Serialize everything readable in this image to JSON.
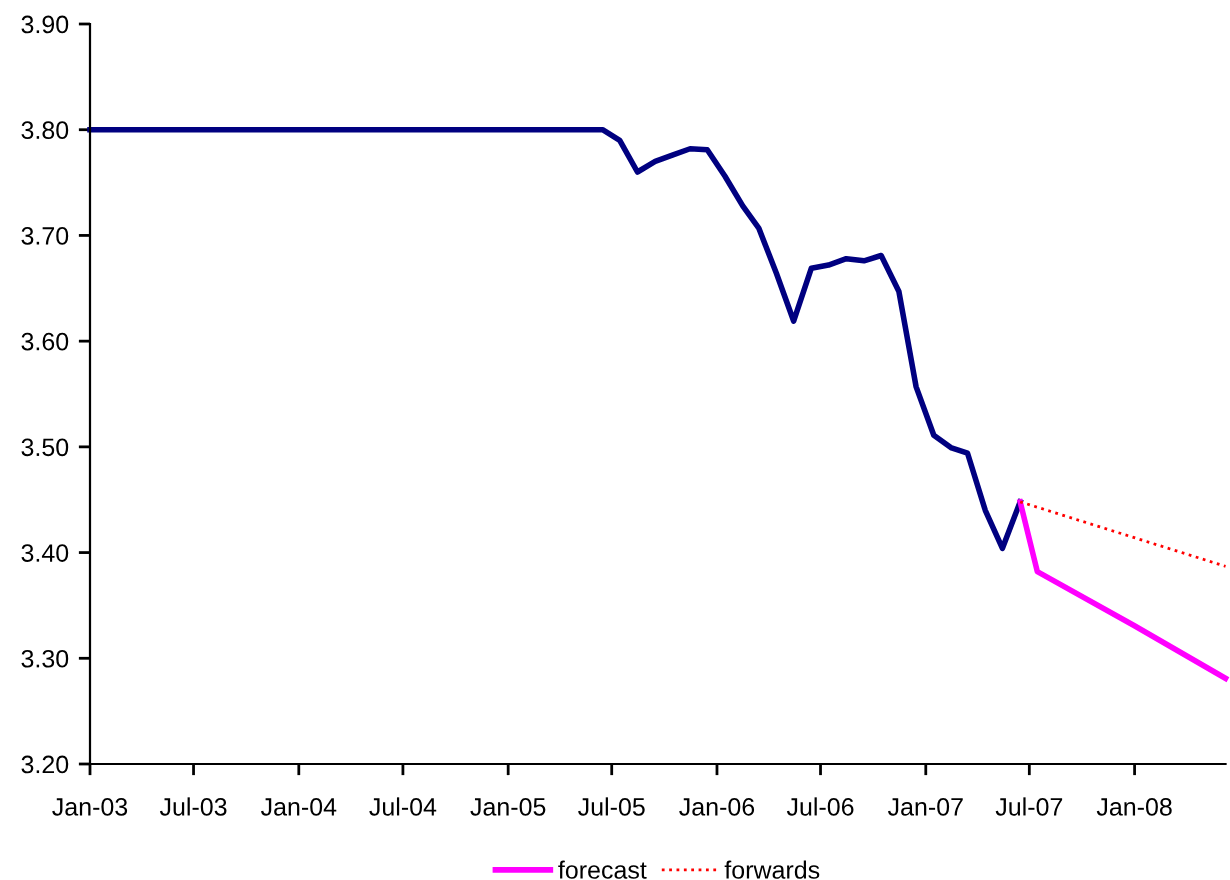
{
  "chart_data": {
    "type": "line",
    "xlim": [
      "2003-01-01",
      "2008-06-08"
    ],
    "xticks": [
      {
        "value": "2003-01-01",
        "label": "Jan-03"
      },
      {
        "value": "2003-07-01",
        "label": "Jul-03"
      },
      {
        "value": "2004-01-01",
        "label": "Jan-04"
      },
      {
        "value": "2004-07-01",
        "label": "Jul-04"
      },
      {
        "value": "2005-01-01",
        "label": "Jan-05"
      },
      {
        "value": "2005-07-01",
        "label": "Jul-05"
      },
      {
        "value": "2006-01-01",
        "label": "Jan-06"
      },
      {
        "value": "2006-07-01",
        "label": "Jul-06"
      },
      {
        "value": "2007-01-01",
        "label": "Jan-07"
      },
      {
        "value": "2007-07-01",
        "label": "Jul-07"
      },
      {
        "value": "2008-01-01",
        "label": "Jan-08"
      }
    ],
    "ylim": [
      3.2,
      3.9
    ],
    "yticks": [
      {
        "value": 3.2,
        "label": "3.20"
      },
      {
        "value": 3.3,
        "label": "3.30"
      },
      {
        "value": 3.4,
        "label": "3.40"
      },
      {
        "value": 3.5,
        "label": "3.50"
      },
      {
        "value": 3.6,
        "label": "3.60"
      },
      {
        "value": 3.7,
        "label": "3.70"
      },
      {
        "value": 3.8,
        "label": "3.80"
      },
      {
        "value": 3.9,
        "label": "3.90"
      }
    ],
    "grid": false,
    "legend": "bottom",
    "series": [
      {
        "color": "#000080",
        "line_style": "solid",
        "x": [
          "2003-01-01",
          "2004-01-15",
          "2005-01-15",
          "2005-06-15",
          "2005-07-15",
          "2005-08-15",
          "2005-09-15",
          "2005-10-15",
          "2005-11-15",
          "2005-12-15",
          "2006-01-15",
          "2006-02-15",
          "2006-03-15",
          "2006-04-15",
          "2006-05-15",
          "2006-06-15",
          "2006-07-15",
          "2006-08-15",
          "2006-09-15",
          "2006-10-15",
          "2006-11-15",
          "2006-12-15",
          "2007-01-15",
          "2007-02-15",
          "2007-03-15",
          "2007-04-15",
          "2007-05-15",
          "2007-06-15"
        ],
        "values": [
          3.8,
          3.8,
          3.8,
          3.8,
          3.79,
          3.76,
          3.77,
          3.776,
          3.782,
          3.781,
          3.756,
          3.728,
          3.707,
          3.664,
          3.619,
          3.669,
          3.672,
          3.678,
          3.676,
          3.681,
          3.647,
          3.557,
          3.511,
          3.499,
          3.494,
          3.44,
          3.404,
          3.448
        ]
      },
      {
        "name": "forecast",
        "color": "#ff00ff",
        "line_style": "solid",
        "x": [
          "2007-06-15",
          "2007-07-15",
          "2007-12-31",
          "2008-06-08"
        ],
        "values": [
          3.448,
          3.382,
          3.331,
          3.281
        ]
      },
      {
        "name": "forwards",
        "color": "#ff0000",
        "line_style": "dotted",
        "x": [
          "2007-06-15",
          "2008-06-08"
        ],
        "values": [
          3.448,
          3.387
        ]
      }
    ]
  }
}
